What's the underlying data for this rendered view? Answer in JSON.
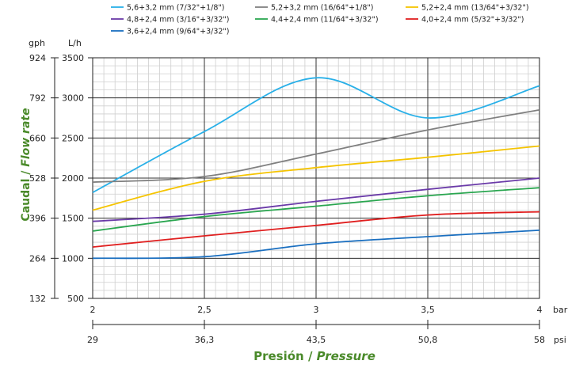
{
  "chart_data": {
    "type": "line",
    "x_unit_bar": "bar",
    "x_unit_psi": "psi",
    "y_unit_lh": "L/h",
    "y_unit_gph": "gph",
    "xlim": [
      2,
      4
    ],
    "ylim": [
      500,
      3500
    ],
    "x_ticks_bar": [
      "2",
      "2,5",
      "3",
      "3,5",
      "4"
    ],
    "x_ticks_psi": [
      "29",
      "36,3",
      "43,5",
      "50,8",
      "58"
    ],
    "y_ticks_lh": [
      "500",
      "1000",
      "1500",
      "2000",
      "2500",
      "3000",
      "3500"
    ],
    "y_ticks_gph": [
      "132",
      "264",
      "396",
      "528",
      "660",
      "792",
      "924"
    ],
    "ylabel_es": "Caudal / ",
    "ylabel_en": "Flow rate",
    "xlabel_es": "Presión / ",
    "xlabel_en": "Pressure",
    "grid": true,
    "legend_position": "top",
    "series": [
      {
        "name": "5,6+3,2 mm (7/32\"+1/8\")",
        "color": "#29b0e8",
        "x": [
          2,
          2.5,
          3,
          3.5,
          4
        ],
        "values": [
          1820,
          2580,
          3250,
          2750,
          3150
        ]
      },
      {
        "name": "5,2+3,2 mm (16/64\"+1/8\")",
        "color": "#808080",
        "x": [
          2,
          2.5,
          3,
          3.5,
          4
        ],
        "values": [
          1950,
          2020,
          2300,
          2600,
          2850
        ]
      },
      {
        "name": "5,2+2,4 mm (13/64\"+3/32\")",
        "color": "#f5c400",
        "x": [
          2,
          2.5,
          3,
          3.5,
          4
        ],
        "values": [
          1600,
          1960,
          2130,
          2260,
          2400
        ]
      },
      {
        "name": "4,8+2,4 mm (3/16\"+3/32\")",
        "color": "#6a3aa8",
        "x": [
          2,
          2.5,
          3,
          3.5,
          4
        ],
        "values": [
          1460,
          1550,
          1710,
          1860,
          2000
        ]
      },
      {
        "name": "4,4+2,4 mm (11/64\"+3/32\")",
        "color": "#2aa650",
        "x": [
          2,
          2.5,
          3,
          3.5,
          4
        ],
        "values": [
          1340,
          1520,
          1650,
          1780,
          1880
        ]
      },
      {
        "name": "4,0+2,4 mm (5/32\"+3/32\")",
        "color": "#e02020",
        "x": [
          2,
          2.5,
          3,
          3.5,
          4
        ],
        "values": [
          1140,
          1280,
          1410,
          1540,
          1580
        ]
      },
      {
        "name": "3,6+2,4 mm (9/64\"+3/32\")",
        "color": "#1a6fc0",
        "x": [
          2,
          2.5,
          3,
          3.5,
          4
        ],
        "values": [
          1000,
          1020,
          1180,
          1270,
          1350
        ]
      }
    ]
  }
}
